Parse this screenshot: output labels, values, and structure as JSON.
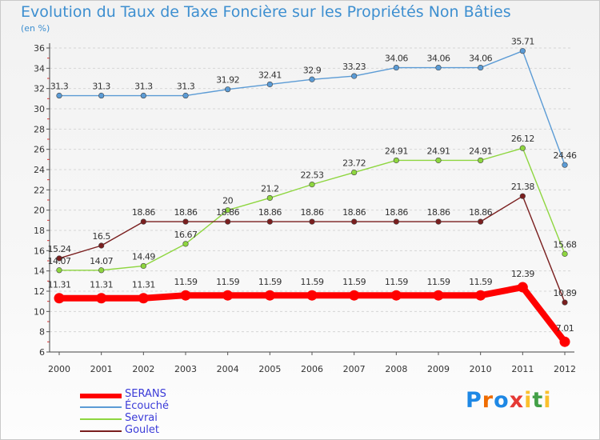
{
  "chart_data": {
    "type": "line",
    "title": "Evolution du Taux de Taxe Foncière sur les Propriétés Non Bâties",
    "subtitle": "(en %)",
    "categories": [
      "2000",
      "2001",
      "2002",
      "2003",
      "2004",
      "2005",
      "2006",
      "2007",
      "2008",
      "2009",
      "2010",
      "2011",
      "2012"
    ],
    "ylim": [
      6,
      36
    ],
    "yticks": [
      6,
      8,
      10,
      12,
      14,
      16,
      18,
      20,
      22,
      24,
      26,
      28,
      30,
      32,
      34,
      36
    ],
    "grid": "horizontal dashed",
    "legend_position": "bottom-left",
    "series": [
      {
        "name": "SERANS",
        "color": "#ff0000",
        "values": [
          11.31,
          11.31,
          11.31,
          11.59,
          11.59,
          11.59,
          11.59,
          11.59,
          11.59,
          11.59,
          11.59,
          12.39,
          7.01
        ],
        "labels": [
          "11.31",
          "11.31",
          "11.31",
          "11.59",
          "11.59",
          "11.59",
          "11.59",
          "11.59",
          "11.59",
          "11.59",
          "11.59",
          "12.39",
          "7.01"
        ]
      },
      {
        "name": "Écouché",
        "color": "#5b9bd5",
        "values": [
          31.3,
          31.3,
          31.3,
          31.3,
          31.92,
          32.41,
          32.9,
          33.23,
          34.06,
          34.06,
          34.06,
          35.71,
          24.46
        ],
        "labels": [
          "31.3",
          "31.3",
          "31.3",
          "31.3",
          "31.92",
          "32.41",
          "32.9",
          "33.23",
          "34.06",
          "34.06",
          "34.06",
          "35.71",
          "24.46"
        ]
      },
      {
        "name": "Sevrai",
        "color": "#8ed63f",
        "values": [
          14.07,
          14.07,
          14.49,
          16.67,
          20,
          21.2,
          22.53,
          23.72,
          24.91,
          24.91,
          24.91,
          26.12,
          15.68
        ],
        "labels": [
          "14.07",
          "14.07",
          "14.49",
          "16.67",
          "20",
          "21.2",
          "22.53",
          "23.72",
          "24.91",
          "24.91",
          "24.91",
          "26.12",
          "15.68"
        ]
      },
      {
        "name": "Goulet",
        "color": "#7a1f1f",
        "values": [
          15.24,
          16.5,
          18.86,
          18.86,
          18.86,
          18.86,
          18.86,
          18.86,
          18.86,
          18.86,
          18.86,
          21.38,
          10.89
        ],
        "labels": [
          "15.24",
          "16.5",
          "18.86",
          "18.86",
          "18.86",
          "18.86",
          "18.86",
          "18.86",
          "18.86",
          "18.86",
          "18.86",
          "21.38",
          "10.89"
        ]
      }
    ]
  },
  "brand": {
    "letters": [
      "P",
      "r",
      "o",
      "x",
      "i",
      "t",
      "i"
    ],
    "colors": [
      "#1e88e5",
      "#ef6c00",
      "#1e88e5",
      "#e53935",
      "#fbc02d",
      "#43a047",
      "#fbc02d"
    ]
  }
}
